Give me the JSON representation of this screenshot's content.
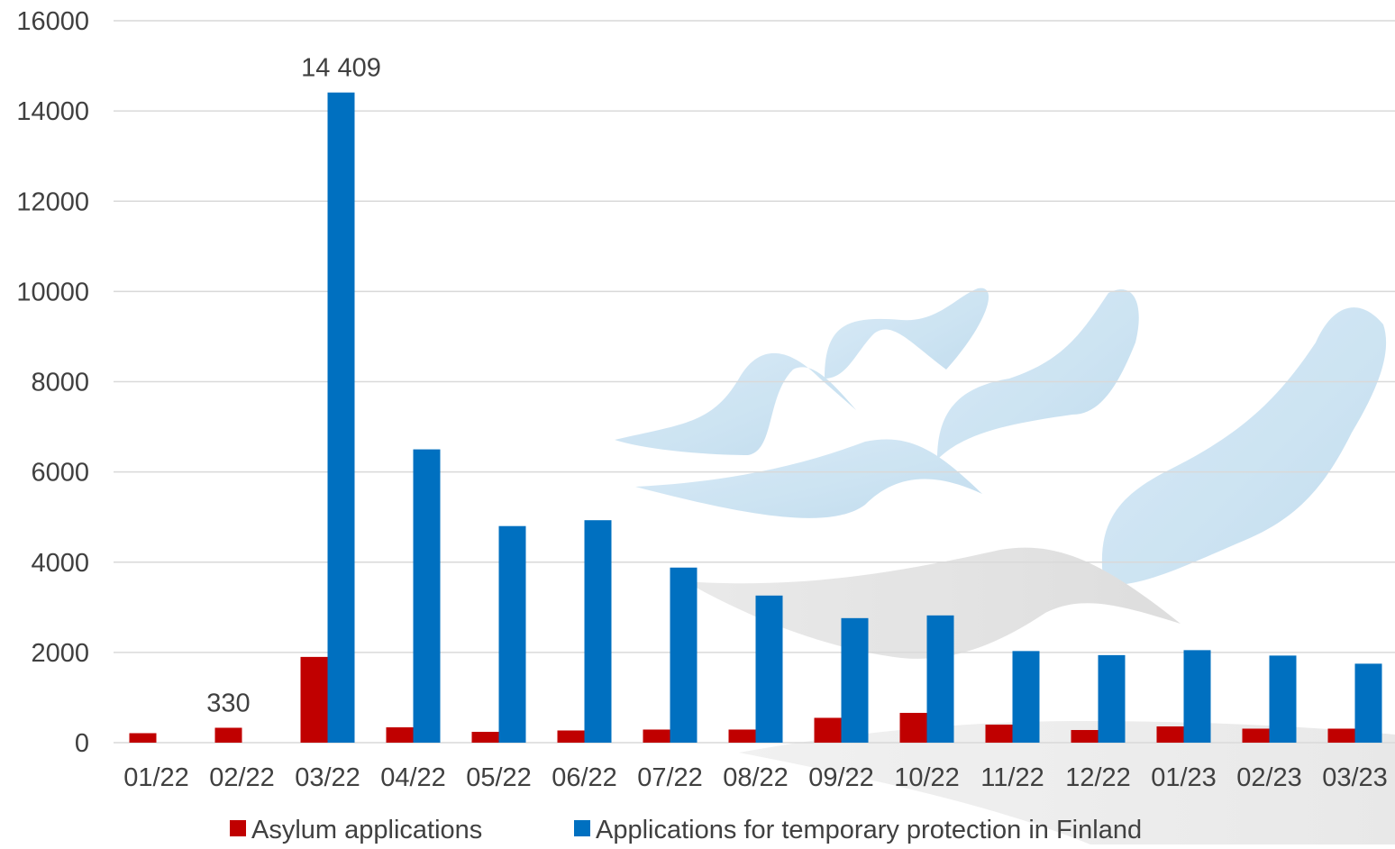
{
  "chart_data": {
    "type": "bar",
    "categories": [
      "01/22",
      "02/22",
      "03/22",
      "04/22",
      "05/22",
      "06/22",
      "07/22",
      "08/22",
      "09/22",
      "10/22",
      "11/22",
      "12/22",
      "01/23",
      "02/23",
      "03/23"
    ],
    "series": [
      {
        "name": "Asylum applications",
        "color": "#c00000",
        "values": [
          210,
          330,
          1900,
          340,
          240,
          270,
          290,
          290,
          550,
          660,
          400,
          280,
          360,
          310,
          310
        ]
      },
      {
        "name": "Applications for temporary protection in Finland",
        "color": "#0070c0",
        "values": [
          0,
          0,
          14409,
          6500,
          4800,
          4930,
          3880,
          3260,
          2760,
          2820,
          2030,
          1940,
          2050,
          1930,
          1750
        ]
      }
    ],
    "data_labels": [
      {
        "series": 0,
        "category": "02/22",
        "text": "330"
      },
      {
        "series": 1,
        "category": "03/22",
        "text": "14 409"
      }
    ],
    "y_ticks": [
      0,
      2000,
      4000,
      6000,
      8000,
      10000,
      12000,
      14000,
      16000
    ],
    "ylim": [
      0,
      16000
    ],
    "grid": true,
    "legend_position": "bottom",
    "title": "",
    "xlabel": "",
    "ylabel": ""
  }
}
